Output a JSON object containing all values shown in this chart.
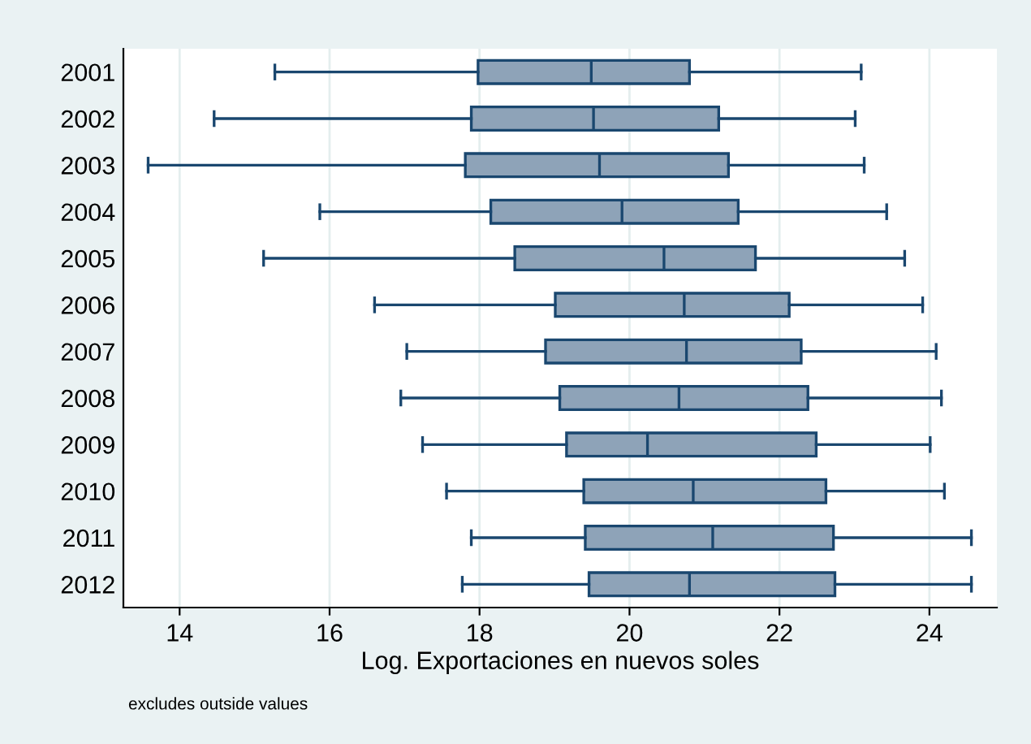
{
  "chart_data": {
    "type": "box",
    "orientation": "horizontal",
    "xlabel": "Log. Exportaciones en nuevos soles",
    "annotations": [
      "excludes outside values"
    ],
    "categories": [
      "2001",
      "2002",
      "2003",
      "2004",
      "2005",
      "2006",
      "2007",
      "2008",
      "2009",
      "2010",
      "2011",
      "2012"
    ],
    "boxes": [
      {
        "low": 15.27,
        "q1": 17.98,
        "median": 19.49,
        "q3": 20.8,
        "high": 23.09
      },
      {
        "low": 14.46,
        "q1": 17.89,
        "median": 19.52,
        "q3": 21.19,
        "high": 23.01
      },
      {
        "low": 13.58,
        "q1": 17.81,
        "median": 19.6,
        "q3": 21.32,
        "high": 23.13
      },
      {
        "low": 15.87,
        "q1": 18.15,
        "median": 19.9,
        "q3": 21.45,
        "high": 23.43
      },
      {
        "low": 15.12,
        "q1": 18.47,
        "median": 20.46,
        "q3": 21.68,
        "high": 23.67
      },
      {
        "low": 16.6,
        "q1": 19.01,
        "median": 20.73,
        "q3": 22.13,
        "high": 23.91
      },
      {
        "low": 17.03,
        "q1": 18.88,
        "median": 20.76,
        "q3": 22.29,
        "high": 24.09
      },
      {
        "low": 16.95,
        "q1": 19.07,
        "median": 20.66,
        "q3": 22.38,
        "high": 24.16
      },
      {
        "low": 17.24,
        "q1": 19.16,
        "median": 20.24,
        "q3": 22.49,
        "high": 24.01
      },
      {
        "low": 17.56,
        "q1": 19.39,
        "median": 20.85,
        "q3": 22.62,
        "high": 24.2
      },
      {
        "low": 17.89,
        "q1": 19.41,
        "median": 21.11,
        "q3": 22.72,
        "high": 24.56
      },
      {
        "low": 17.77,
        "q1": 19.46,
        "median": 20.8,
        "q3": 22.74,
        "high": 24.56
      }
    ],
    "color": "#8ea3b8",
    "xlim": [
      13.25,
      24.9
    ],
    "xticks": [
      14,
      16,
      18,
      20,
      22,
      24
    ],
    "grid": "x"
  }
}
